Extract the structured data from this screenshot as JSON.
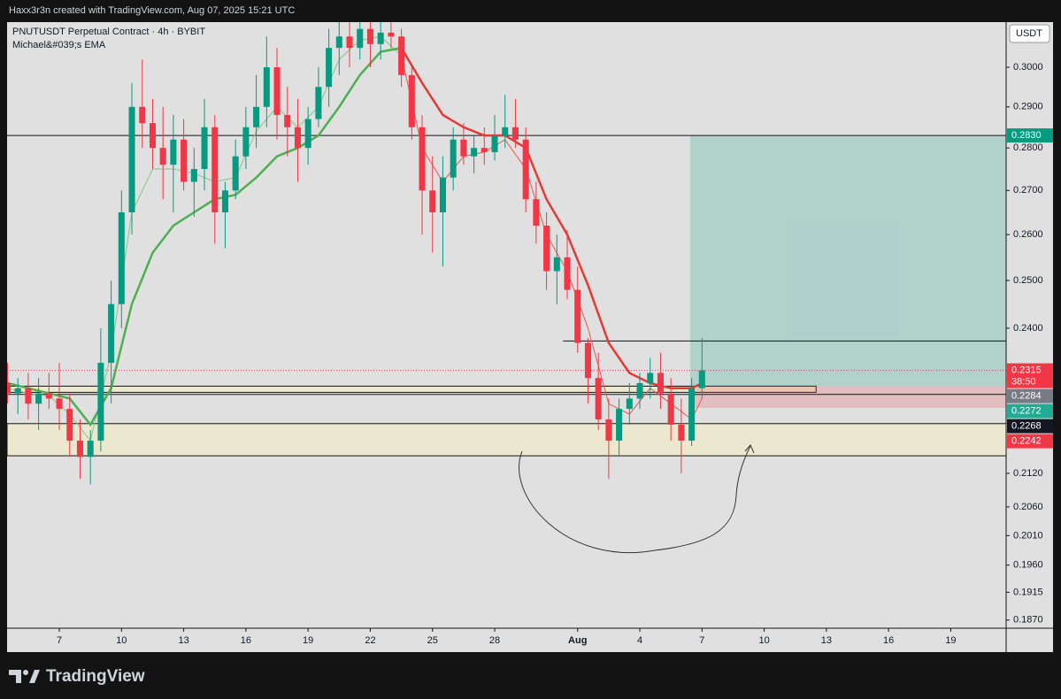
{
  "header": {
    "attribution": "Haxx3r3n created with TradingView.com, Aug 07, 2025 15:21 UTC",
    "brand": "TradingView"
  },
  "chart_data": {
    "type": "candlestick",
    "title": "PNUTUSDT Perpetual Contract · 4h · BYBIT",
    "indicator": "Michael&#039;s EMA",
    "currency": "USDT",
    "log_scale": true,
    "xlim": [
      4.48,
      52.67
    ],
    "ylim": [
      0.1857,
      0.3118
    ],
    "xticks": [
      7,
      10,
      13,
      16,
      19,
      22,
      25,
      28,
      {
        "value": 32,
        "label": "Aug"
      },
      {
        "value": 35,
        "label": "4"
      },
      {
        "value": 38,
        "label": "7"
      },
      {
        "value": 41,
        "label": "10"
      },
      {
        "value": 44,
        "label": "13"
      },
      {
        "value": 47,
        "label": "16"
      },
      {
        "value": 50,
        "label": "19"
      }
    ],
    "yticks": [
      {
        "value": 0.3,
        "label": "0.3000"
      },
      {
        "value": 0.29,
        "label": "0.2900"
      },
      {
        "value": 0.28,
        "label": "0.2800"
      },
      {
        "value": 0.27,
        "label": "0.2700"
      },
      {
        "value": 0.26,
        "label": "0.2600"
      },
      {
        "value": 0.25,
        "label": "0.2500"
      },
      {
        "value": 0.24,
        "label": "0.2400"
      },
      {
        "value": 0.212,
        "label": "0.2120"
      },
      {
        "value": 0.206,
        "label": "0.2060"
      },
      {
        "value": 0.201,
        "label": "0.2010"
      },
      {
        "value": 0.196,
        "label": "0.1960"
      },
      {
        "value": 0.1915,
        "label": "0.1915"
      },
      {
        "value": 0.187,
        "label": "0.1870"
      }
    ],
    "candles": {
      "up_color": "#089981",
      "down_color": "#f23645",
      "x": [
        4.5,
        5,
        5.5,
        6,
        6.5,
        7,
        7.5,
        8,
        8.5,
        9,
        9.5,
        10,
        10.5,
        11,
        11.5,
        12,
        12.5,
        13,
        13.5,
        14,
        14.5,
        15,
        15.5,
        16,
        16.5,
        17,
        17.5,
        18,
        18.5,
        19,
        19.5,
        20,
        20.5,
        21,
        21.5,
        22,
        22.5,
        23,
        23.5,
        24,
        24.5,
        25,
        25.5,
        26,
        26.5,
        27,
        27.5,
        28,
        28.5,
        29,
        29.5,
        30,
        30.5,
        31,
        31.5,
        32,
        32.5,
        33,
        33.5,
        34,
        34.5,
        35,
        35.5,
        36,
        36.5,
        37,
        37.5,
        38
      ],
      "open": [
        0.229,
        0.227,
        0.228,
        0.225,
        0.227,
        0.226,
        0.224,
        0.218,
        0.215,
        0.218,
        0.233,
        0.245,
        0.265,
        0.29,
        0.286,
        0.28,
        0.276,
        0.282,
        0.272,
        0.275,
        0.285,
        0.265,
        0.27,
        0.278,
        0.285,
        0.29,
        0.3,
        0.288,
        0.285,
        0.28,
        0.287,
        0.295,
        0.305,
        0.308,
        0.305,
        0.31,
        0.306,
        0.309,
        0.308,
        0.298,
        0.285,
        0.27,
        0.265,
        0.273,
        0.282,
        0.278,
        0.28,
        0.279,
        0.283,
        0.285,
        0.282,
        0.268,
        0.262,
        0.252,
        0.255,
        0.248,
        0.237,
        0.23,
        0.222,
        0.218,
        0.224,
        0.226,
        0.229,
        0.231,
        0.227,
        0.221,
        0.218,
        0.228
      ],
      "high": [
        0.233,
        0.23,
        0.231,
        0.23,
        0.231,
        0.233,
        0.227,
        0.222,
        0.22,
        0.24,
        0.25,
        0.27,
        0.296,
        0.302,
        0.292,
        0.29,
        0.288,
        0.287,
        0.28,
        0.292,
        0.288,
        0.272,
        0.282,
        0.29,
        0.298,
        0.308,
        0.305,
        0.295,
        0.292,
        0.29,
        0.3,
        0.31,
        0.312,
        0.312,
        0.312,
        0.312,
        0.312,
        0.312,
        0.31,
        0.3,
        0.288,
        0.278,
        0.278,
        0.285,
        0.286,
        0.283,
        0.285,
        0.288,
        0.293,
        0.292,
        0.285,
        0.272,
        0.265,
        0.26,
        0.261,
        0.253,
        0.238,
        0.235,
        0.226,
        0.226,
        0.229,
        0.231,
        0.234,
        0.235,
        0.23,
        0.226,
        0.23,
        0.238
      ],
      "low": [
        0.225,
        0.223,
        0.222,
        0.22,
        0.224,
        0.22,
        0.215,
        0.211,
        0.21,
        0.216,
        0.225,
        0.24,
        0.26,
        0.28,
        0.275,
        0.268,
        0.265,
        0.27,
        0.264,
        0.27,
        0.258,
        0.257,
        0.268,
        0.275,
        0.28,
        0.285,
        0.282,
        0.278,
        0.272,
        0.276,
        0.285,
        0.29,
        0.298,
        0.3,
        0.302,
        0.3,
        0.302,
        0.305,
        0.295,
        0.282,
        0.26,
        0.256,
        0.253,
        0.27,
        0.276,
        0.274,
        0.276,
        0.277,
        0.28,
        0.28,
        0.265,
        0.258,
        0.248,
        0.245,
        0.246,
        0.235,
        0.225,
        0.22,
        0.211,
        0.215,
        0.221,
        0.224,
        0.226,
        0.224,
        0.218,
        0.212,
        0.217,
        0.226
      ],
      "close": [
        0.227,
        0.228,
        0.225,
        0.227,
        0.226,
        0.224,
        0.218,
        0.215,
        0.218,
        0.233,
        0.245,
        0.265,
        0.29,
        0.286,
        0.28,
        0.276,
        0.282,
        0.272,
        0.275,
        0.285,
        0.265,
        0.27,
        0.278,
        0.285,
        0.29,
        0.3,
        0.288,
        0.285,
        0.28,
        0.287,
        0.295,
        0.305,
        0.308,
        0.305,
        0.31,
        0.306,
        0.309,
        0.308,
        0.298,
        0.285,
        0.27,
        0.265,
        0.273,
        0.282,
        0.278,
        0.28,
        0.279,
        0.283,
        0.285,
        0.282,
        0.268,
        0.262,
        0.252,
        0.255,
        0.248,
        0.237,
        0.23,
        0.222,
        0.218,
        0.224,
        0.226,
        0.229,
        0.231,
        0.227,
        0.221,
        0.218,
        0.228,
        0.2315
      ]
    },
    "series": [
      {
        "color": "#81c784",
        "width": 1,
        "x": [
          4.5,
          5.5,
          6.5,
          7.5,
          8.5,
          9.5,
          10.5,
          11.5,
          12.5,
          13.5,
          14.5,
          15.5,
          16.5,
          17.5,
          18.5,
          19.5,
          20.5,
          21.5,
          22.5,
          23.5,
          24.5,
          25.5,
          26.5,
          27.5,
          28.5,
          29.5,
          30.5,
          31.5,
          32.5,
          33.5,
          34.5,
          35.5,
          36.5,
          37.5,
          38
        ],
        "values": [
          0.228,
          0.227,
          0.2265,
          0.223,
          0.218,
          0.235,
          0.265,
          0.275,
          0.275,
          0.274,
          0.272,
          0.273,
          0.284,
          0.29,
          0.285,
          0.29,
          0.302,
          0.307,
          0.308,
          0.303,
          null,
          null,
          null,
          null,
          null,
          null,
          null,
          null,
          null,
          null,
          null,
          null,
          null,
          null,
          null
        ]
      },
      {
        "color": "#ef5350",
        "width": 1,
        "x": [
          4.5,
          5.5,
          6.5,
          7.5,
          8.5,
          9.5,
          10.5,
          11.5,
          12.5,
          13.5,
          14.5,
          15.5,
          16.5,
          17.5,
          18.5,
          19.5,
          20.5,
          21.5,
          22.5,
          23.5,
          24.5,
          25.5,
          26.5,
          27.5,
          28.5,
          29.5,
          30.5,
          31.5,
          32.5,
          33.5,
          34.5,
          35.5,
          36.5,
          37.5,
          38
        ],
        "values": [
          null,
          null,
          null,
          null,
          null,
          null,
          null,
          null,
          null,
          null,
          null,
          null,
          null,
          null,
          null,
          null,
          null,
          null,
          null,
          0.303,
          0.28,
          0.272,
          0.278,
          0.279,
          0.282,
          0.275,
          0.26,
          0.252,
          0.24,
          0.225,
          0.223,
          0.228,
          0.225,
          0.222,
          0.226
        ]
      },
      {
        "color": "#4caf50",
        "width": 2.5,
        "x": [
          4.5,
          5.5,
          6.5,
          7.5,
          8.5,
          9.5,
          10.5,
          11.5,
          12.5,
          13.5,
          14.5,
          15.5,
          16.5,
          17.5,
          18.5,
          19.5,
          20.5,
          21.5,
          22.5,
          23.5,
          24.5,
          25.5,
          26.5,
          27.5,
          28.5,
          29.5,
          30.5,
          31.5,
          32.5,
          33.5,
          34.5,
          35.5,
          36.5,
          37.5,
          38
        ],
        "values": [
          0.229,
          0.228,
          0.227,
          0.226,
          0.221,
          0.228,
          0.245,
          0.256,
          0.262,
          0.265,
          0.268,
          0.269,
          0.273,
          0.278,
          0.28,
          0.283,
          0.29,
          0.298,
          0.304,
          0.305,
          null,
          null,
          null,
          null,
          null,
          null,
          null,
          null,
          null,
          null,
          null,
          null,
          null,
          null,
          null
        ]
      },
      {
        "color": "#e53935",
        "width": 2.5,
        "x": [
          4.5,
          5.5,
          6.5,
          7.5,
          8.5,
          9.5,
          10.5,
          11.5,
          12.5,
          13.5,
          14.5,
          15.5,
          16.5,
          17.5,
          18.5,
          19.5,
          20.5,
          21.5,
          22.5,
          23.5,
          24.5,
          25.5,
          26.5,
          27.5,
          28.5,
          29.5,
          30.5,
          31.5,
          32.5,
          33.5,
          34.5,
          35.5,
          36.5,
          37.5,
          38
        ],
        "values": [
          null,
          null,
          null,
          null,
          null,
          null,
          null,
          null,
          null,
          null,
          null,
          null,
          null,
          null,
          null,
          null,
          null,
          null,
          null,
          0.305,
          0.296,
          0.288,
          0.285,
          0.283,
          0.283,
          0.28,
          0.268,
          0.26,
          0.249,
          0.237,
          0.231,
          0.229,
          0.228,
          0.228,
          0.229
        ]
      }
    ],
    "levels": [
      {
        "value": 0.283
      },
      {
        "value": 0.2374,
        "from": 31.3
      },
      {
        "value": 0.2268
      }
    ],
    "zones": [
      {
        "top": 0.2284,
        "bottom": 0.2272,
        "to": 43.5
      },
      {
        "top": 0.2212,
        "bottom": 0.2152
      }
    ],
    "position": {
      "x_start": 37.43,
      "x_end": 52.67,
      "target": 0.283,
      "entry": 0.2284,
      "stop": 0.2242
    },
    "last_price": 0.2315,
    "price_labels": [
      {
        "value": 0.283,
        "label": "0.2830",
        "color": "#089981"
      },
      {
        "value": 0.2315,
        "label": "0.2315",
        "countdown": "38:50",
        "color": "#f23645"
      },
      {
        "value": 0.2284,
        "label": "0.2284",
        "color": "#787b86"
      },
      {
        "value": 0.2272,
        "label": "0.2272",
        "color": "#22ab94"
      },
      {
        "value": 0.2268,
        "label": "0.2268",
        "color": "#131722"
      },
      {
        "value": 0.2242,
        "label": "0.2242",
        "color": "#f23645"
      }
    ]
  }
}
